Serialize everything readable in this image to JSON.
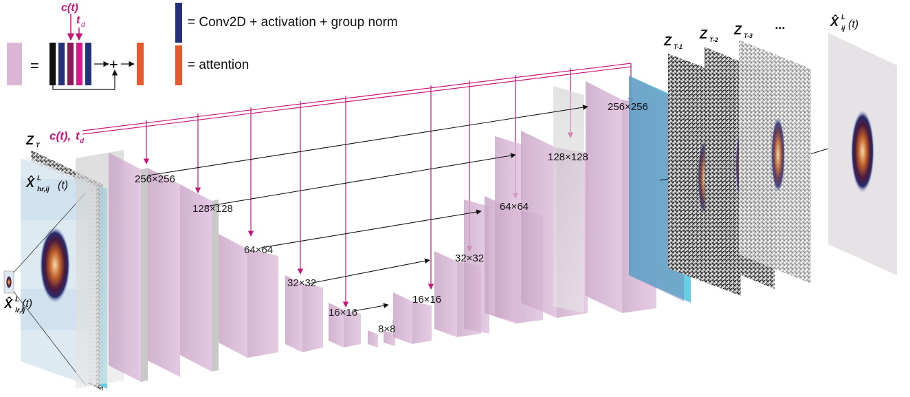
{
  "legend": {
    "condition_label": "c(t)",
    "time_label": "t",
    "time_sub": "d",
    "equals": "=",
    "plus": "+",
    "conv_text": "= Conv2D + activation + group norm",
    "attention_text": "= attention",
    "colors": {
      "block": "#dcb6d6",
      "conv": "#27307a",
      "attention": "#e85a2e",
      "signal": "#c8157a",
      "cyan": "#4ec6df"
    }
  },
  "labels": {
    "z_t": "Z",
    "z_t_sub": "T",
    "hr": "X̂",
    "hr_sup": "L",
    "hr_sub": "hr,ij",
    "hr_t": "(t)",
    "lr": "X̂",
    "lr_sup": "L",
    "lr_sub": "lr,ij",
    "lr_t": "(t)",
    "cond_c": "c(t),",
    "cond_t": "t",
    "cond_t_sub": "d",
    "z_t1": "Z",
    "z_t1_sub": "T-1",
    "z_t2": "Z",
    "z_t2_sub": "T-2",
    "z_t3": "Z",
    "z_t3_sub": "T-3",
    "dots": "...",
    "out": "X̂",
    "out_sup": "L",
    "out_sub": "ij",
    "out_t": "(t)"
  },
  "resolutions": {
    "enc_256": "256×256",
    "enc_128": "128×128",
    "enc_64": "64×64",
    "enc_32": "32×32",
    "enc_16": "16×16",
    "bottleneck": "8×8",
    "dec_16": "16×16",
    "dec_32": "32×32",
    "dec_64": "64×64",
    "dec_128": "128×128",
    "dec_256": "256×256"
  }
}
